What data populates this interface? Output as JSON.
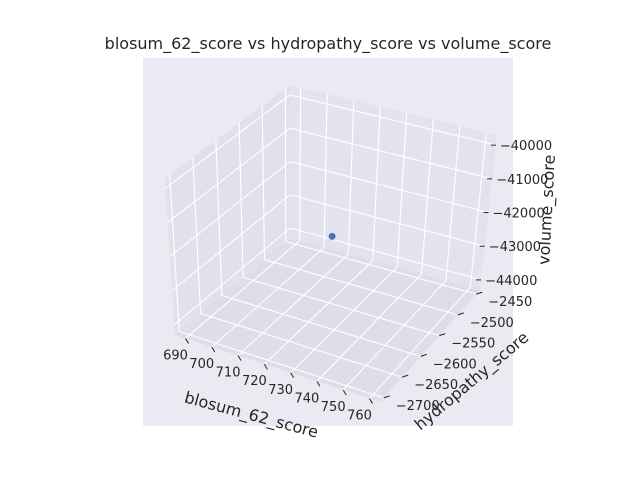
{
  "chart_data": {
    "type": "scatter",
    "title": "blosum_62_score vs hydropathy_score vs volume_score",
    "xlabel": "blosum_62_score",
    "ylabel": "hydropathy_score",
    "zlabel": "volume_score",
    "x_ticks": [
      "690",
      "700",
      "710",
      "720",
      "730",
      "740",
      "750",
      "760"
    ],
    "y_ticks": [
      "−2700",
      "−2650",
      "−2600",
      "−2550",
      "−2500",
      "−2450"
    ],
    "z_ticks": [
      "−44000",
      "−43000",
      "−42000",
      "−41000",
      "−40000"
    ],
    "xlim": [
      686,
      764
    ],
    "ylim": [
      -2710,
      -2440
    ],
    "zlim": [
      -44300,
      -39700
    ],
    "points": [
      {
        "x": 725,
        "y": -2575,
        "z": -42000
      }
    ],
    "point_color": "#4c72b0",
    "pane_color": "#e1e1ec",
    "background_color": "#eaeaf2",
    "grid": true
  }
}
